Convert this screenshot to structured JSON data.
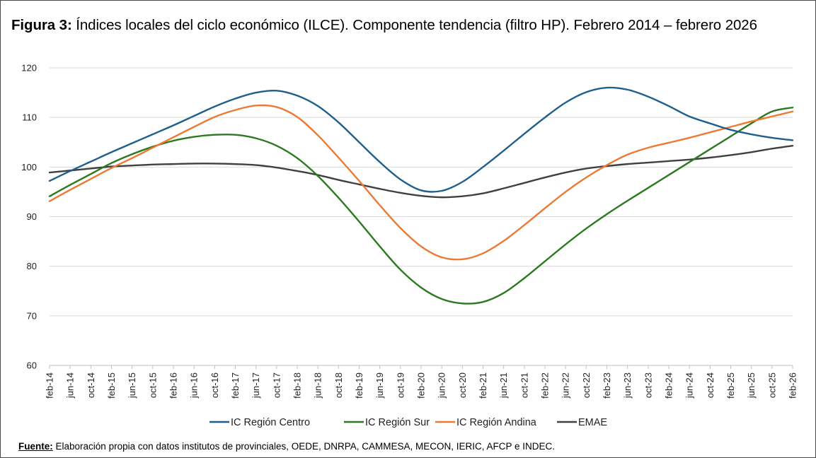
{
  "title": {
    "label": "Figura 3:",
    "text": "Índices locales del ciclo económico (ILCE). Componente tendencia (filtro HP). Febrero 2014 – febrero 2026"
  },
  "source": {
    "label": "Fuente:",
    "text": "Elaboración propia con datos institutos de provinciales, OEDE, DNRPA, CAMMESA, MECON, IERIC, AFCP e INDEC."
  },
  "chart_data": {
    "type": "line",
    "title": "",
    "xlabel": "",
    "ylabel": "",
    "ylim": [
      60,
      120
    ],
    "yticks": [
      60,
      70,
      80,
      90,
      100,
      110,
      120
    ],
    "grid": "horizontal",
    "legend_position": "bottom",
    "categories": [
      "feb-14",
      "jun-14",
      "oct-14",
      "feb-15",
      "jun-15",
      "oct-15",
      "feb-16",
      "jun-16",
      "oct-16",
      "feb-17",
      "jun-17",
      "oct-17",
      "feb-18",
      "jun-18",
      "oct-18",
      "feb-19",
      "jun-19",
      "oct-19",
      "feb-20",
      "jun-20",
      "oct-20",
      "feb-21",
      "jun-21",
      "oct-21",
      "feb-22",
      "jun-22",
      "oct-22",
      "feb-23",
      "jun-23",
      "oct-23",
      "feb-24",
      "jun-24",
      "oct-24",
      "feb-25",
      "jun-25",
      "oct-25",
      "feb-26"
    ],
    "series": [
      {
        "name": "IC Región Centro",
        "color": "#1f5f8b",
        "values": [
          97.2,
          99.2,
          101.1,
          103.0,
          104.8,
          106.6,
          108.4,
          110.3,
          112.2,
          113.8,
          115.0,
          115.4,
          114.4,
          112.3,
          109.0,
          105.0,
          101.0,
          97.5,
          95.3,
          95.2,
          97.0,
          100.0,
          103.3,
          106.7,
          110.0,
          113.0,
          115.1,
          116.0,
          115.6,
          114.2,
          112.3,
          110.2,
          108.8,
          107.5,
          106.6,
          105.9,
          105.4
        ]
      },
      {
        "name": "IC Región Sur",
        "color": "#2b7a1f",
        "values": [
          94.1,
          96.4,
          98.6,
          100.8,
          102.6,
          104.1,
          105.3,
          106.1,
          106.5,
          106.5,
          105.8,
          104.3,
          101.8,
          98.2,
          93.8,
          89.0,
          84.0,
          79.3,
          75.7,
          73.4,
          72.5,
          72.8,
          74.6,
          77.6,
          81.0,
          84.4,
          87.6,
          90.5,
          93.2,
          95.8,
          98.4,
          101.0,
          103.6,
          106.2,
          108.8,
          111.2,
          112.0
        ]
      },
      {
        "name": "IC Región Andina",
        "color": "#ec7a34",
        "values": [
          93.1,
          95.4,
          97.6,
          99.8,
          101.8,
          103.9,
          106.0,
          108.1,
          110.1,
          111.5,
          112.4,
          112.1,
          110.1,
          106.4,
          101.9,
          97.2,
          92.3,
          87.7,
          84.0,
          81.8,
          81.4,
          82.6,
          85.1,
          88.3,
          91.7,
          95.0,
          97.9,
          100.4,
          102.5,
          103.9,
          104.9,
          105.9,
          107.0,
          108.1,
          109.2,
          110.2,
          111.2
        ]
      },
      {
        "name": "EMAE",
        "color": "#404040",
        "values": [
          98.9,
          99.3,
          99.7,
          100.1,
          100.3,
          100.5,
          100.6,
          100.7,
          100.7,
          100.6,
          100.4,
          99.9,
          99.2,
          98.4,
          97.4,
          96.5,
          95.6,
          94.8,
          94.2,
          93.9,
          94.1,
          94.7,
          95.7,
          96.8,
          97.9,
          98.9,
          99.7,
          100.2,
          100.6,
          100.9,
          101.2,
          101.5,
          101.9,
          102.4,
          103.0,
          103.7,
          104.3
        ]
      }
    ]
  }
}
